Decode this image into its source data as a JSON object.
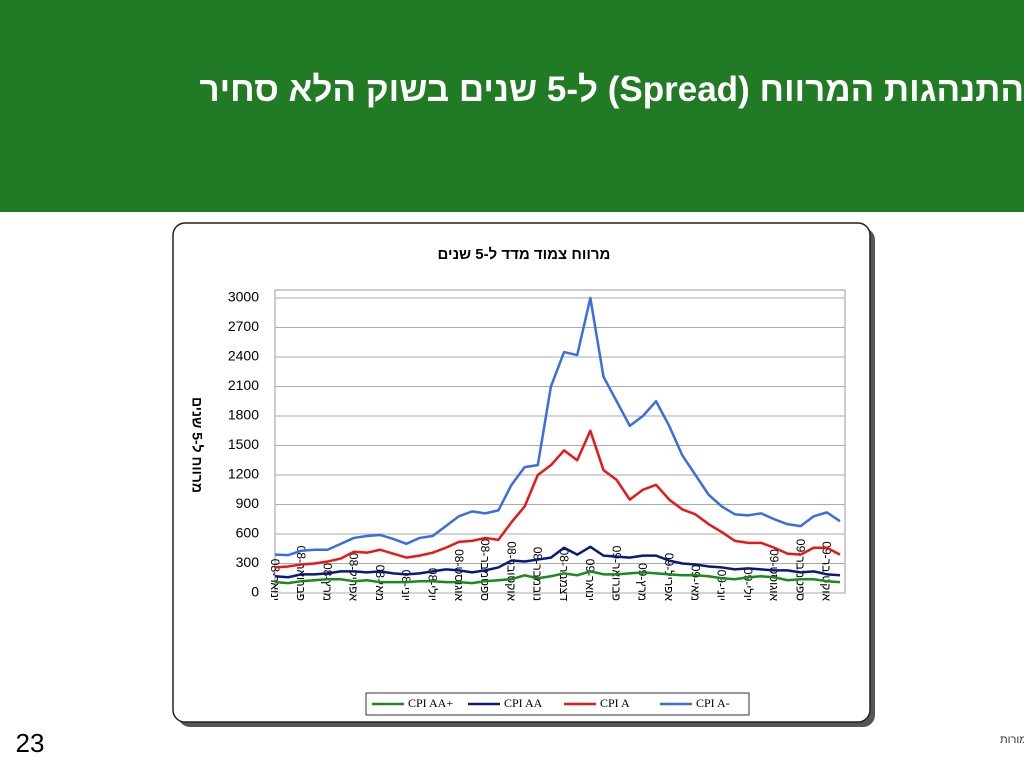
{
  "slide_title": "התנהגות המרווח (Spread) ל-5 שנים בשוק הלא סחיר",
  "page_number": "23",
  "footer": "© כל הזכויות שמורות",
  "chart_data": {
    "type": "line",
    "title": "מרווח צמוד מדד ל-5 שנים",
    "y_label": "מרווח ל-5 שנים",
    "categories": [
      "ינואר-08",
      null,
      "פברואר-08",
      null,
      "מרץ-08",
      null,
      "אפריל-08",
      null,
      "מאי-08",
      null,
      "יוני-08",
      null,
      "יולי-08",
      null,
      "אוגוסט-08",
      null,
      "ספטמבר-08",
      null,
      "אוקטובר-08",
      null,
      "נובמבר-08",
      null,
      "דצמבר-08",
      null,
      "ינואר-09",
      null,
      "פברואר-09",
      null,
      "מרץ-09",
      null,
      "אפריל-09",
      null,
      "מאי-09",
      null,
      "יוני-09",
      null,
      "יולי-09",
      null,
      "אוגוסט-09",
      null,
      "ספטמבר-09",
      null,
      "אוקטובר-09",
      null
    ],
    "series": [
      {
        "name": "CPI AA+",
        "color": "#1a8a1a",
        "values": [
          110,
          100,
          120,
          130,
          140,
          140,
          120,
          130,
          110,
          110,
          110,
          120,
          120,
          110,
          110,
          100,
          120,
          130,
          140,
          180,
          150,
          170,
          200,
          180,
          220,
          190,
          190,
          200,
          210,
          200,
          190,
          180,
          180,
          170,
          150,
          140,
          160,
          170,
          160,
          130,
          140,
          140,
          120,
          110
        ]
      },
      {
        "name": "CPI AA",
        "color": "#0a1a7a",
        "values": [
          170,
          160,
          190,
          190,
          200,
          220,
          220,
          210,
          220,
          200,
          190,
          200,
          220,
          240,
          230,
          210,
          230,
          260,
          330,
          320,
          340,
          360,
          460,
          390,
          470,
          380,
          370,
          360,
          380,
          380,
          330,
          300,
          290,
          270,
          260,
          240,
          250,
          240,
          230,
          230,
          210,
          220,
          190,
          180
        ]
      },
      {
        "name": "CPI A",
        "color": "#e81818",
        "values": [
          260,
          270,
          290,
          300,
          320,
          350,
          420,
          410,
          440,
          400,
          360,
          380,
          410,
          460,
          520,
          530,
          560,
          540,
          720,
          880,
          1200,
          1300,
          1450,
          1350,
          1650,
          1250,
          1150,
          950,
          1050,
          1100,
          950,
          850,
          800,
          700,
          620,
          530,
          510,
          510,
          460,
          400,
          390,
          460,
          460,
          390
        ]
      },
      {
        "name": "CPI A-",
        "color": "#3a6ee0",
        "values": [
          390,
          385,
          430,
          440,
          440,
          500,
          560,
          580,
          590,
          550,
          500,
          560,
          580,
          680,
          780,
          830,
          810,
          840,
          1100,
          1280,
          1300,
          2100,
          2450,
          2420,
          3000,
          2200,
          1950,
          1700,
          1800,
          1950,
          1700,
          1400,
          1200,
          1000,
          880,
          800,
          790,
          810,
          750,
          700,
          680,
          780,
          820,
          730
        ]
      }
    ],
    "ylim": [
      0,
      3000
    ],
    "yticks": [
      0,
      300,
      600,
      900,
      1200,
      1500,
      1800,
      2100,
      2400,
      2700,
      3000
    ],
    "grid": true
  }
}
